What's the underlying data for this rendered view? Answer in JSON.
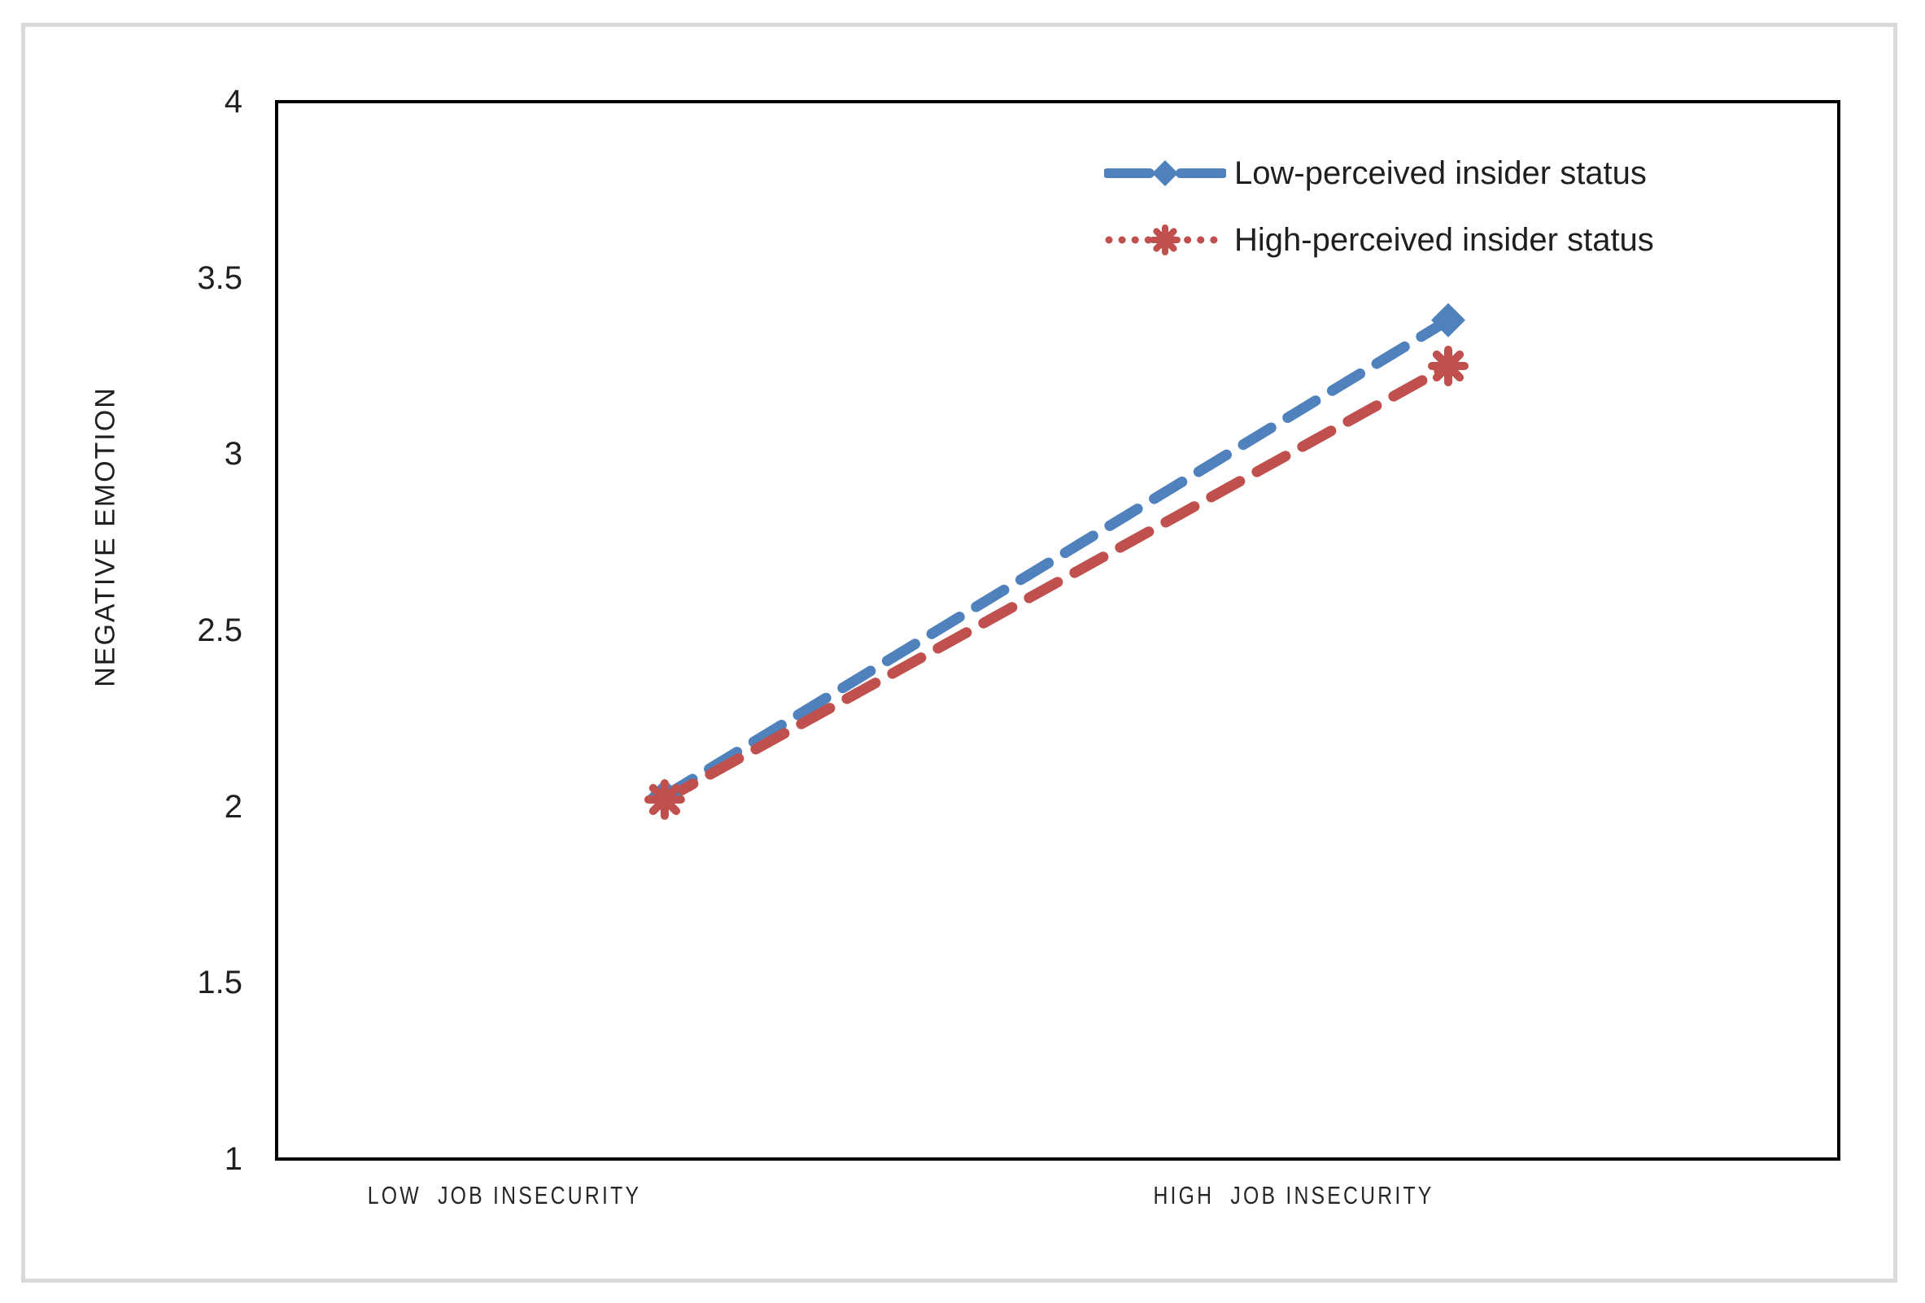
{
  "figure": {
    "background": "#ffffff",
    "border_color": "#d9d9d9"
  },
  "chart_data": {
    "type": "line",
    "title": "",
    "xlabel": "",
    "ylabel": "NEGATIVE EMOTION",
    "categories": [
      "LOW  JOB INSECURITY",
      "HIGH  JOB INSECURITY"
    ],
    "series": [
      {
        "name": "Low-perceived insider status",
        "values": [
          2.03,
          3.38
        ],
        "color": "#4F81BD",
        "marker": "diamond",
        "line_style": "dashed",
        "legend_line_style": "dashed"
      },
      {
        "name": "High-perceived insider status",
        "values": [
          2.02,
          3.25
        ],
        "color": "#C0504D",
        "marker": "asterisk",
        "line_style": "dashed",
        "legend_line_style": "dotted"
      }
    ],
    "ylim": [
      1,
      4
    ],
    "yticks": [
      "1",
      "1.5",
      "2",
      "2.5",
      "3",
      "3.5",
      "4"
    ],
    "grid": false,
    "legend_position": "top-right",
    "axis_color": "#000000",
    "text_color": "#1f1f1f"
  }
}
